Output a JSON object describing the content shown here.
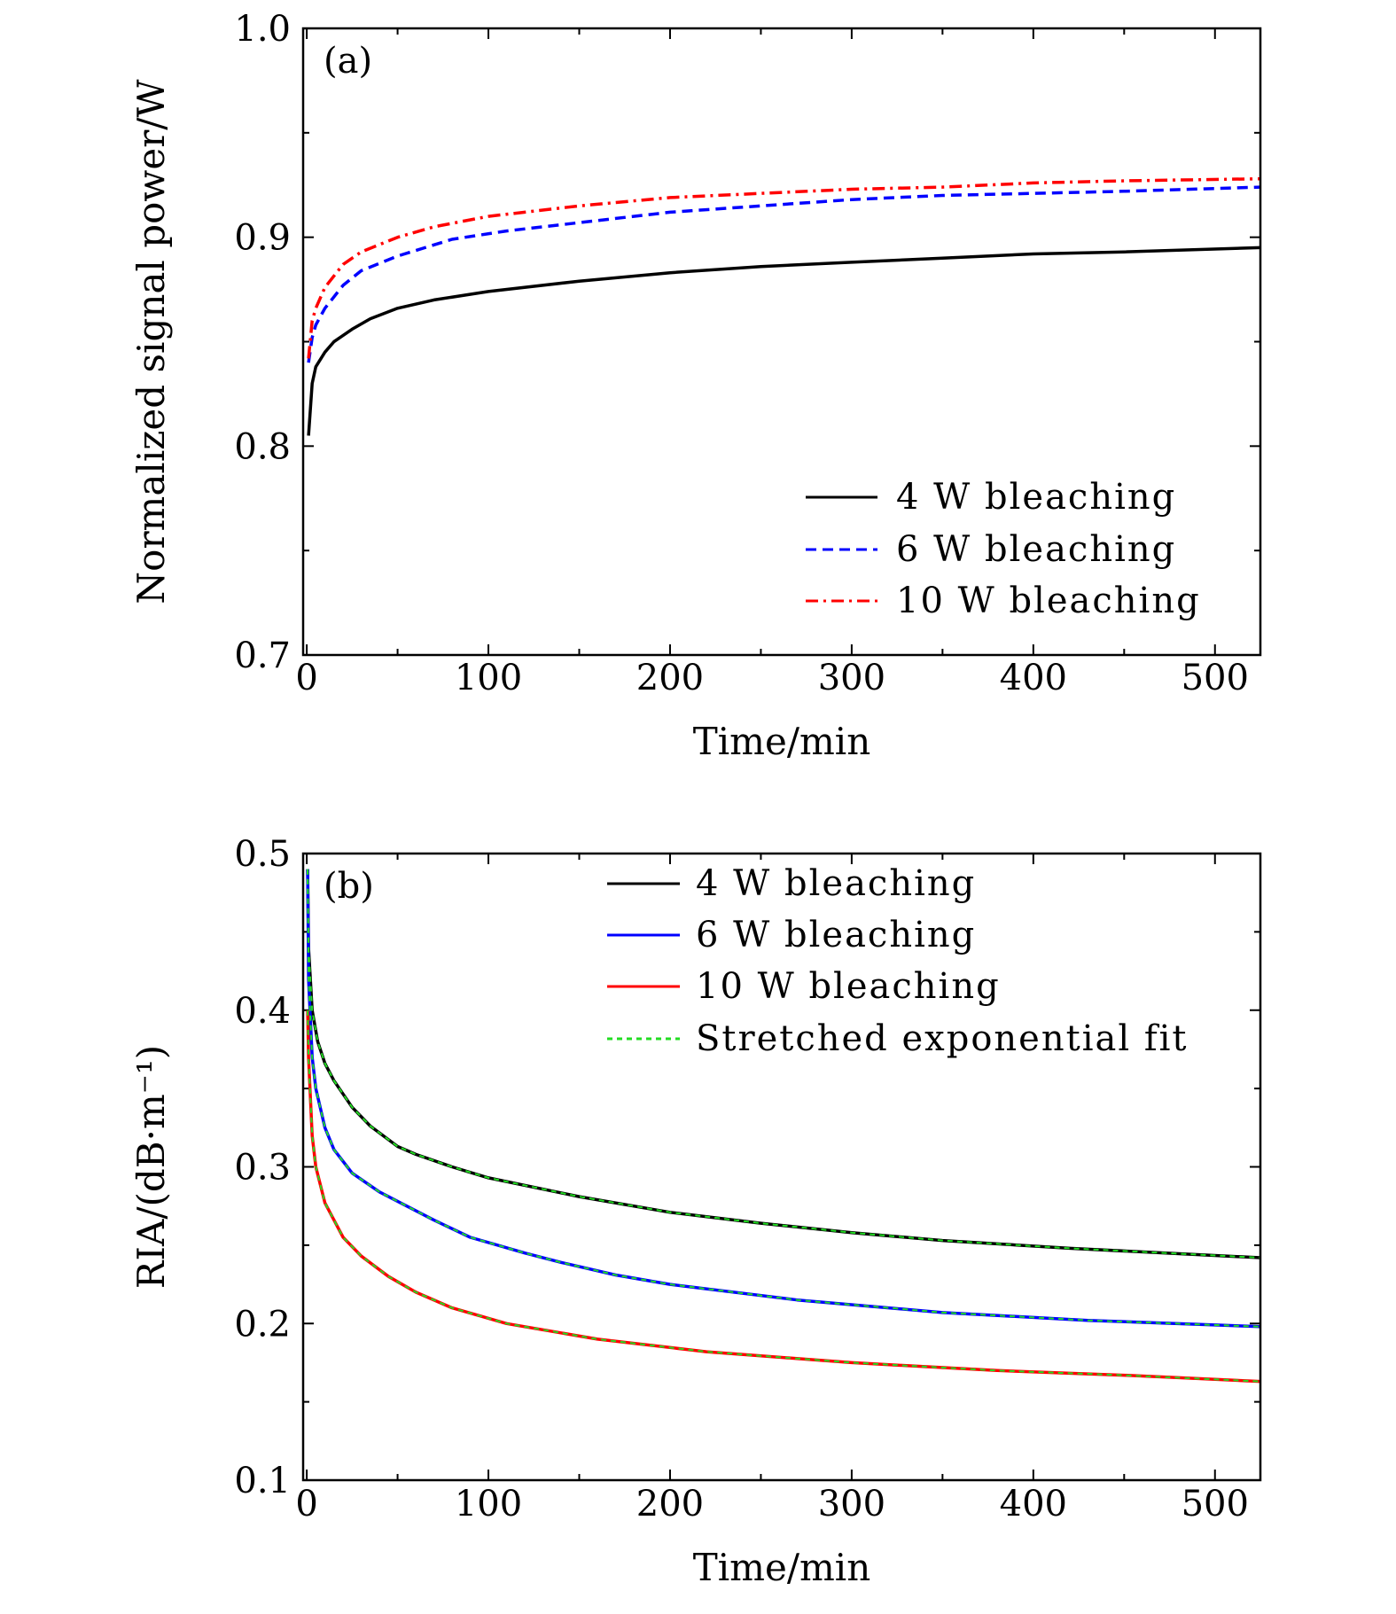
{
  "chart_data": [
    {
      "type": "line",
      "panel_label": "(a)",
      "xlabel": "Time/min",
      "ylabel": "Normalized signal power/W",
      "xlim": [
        -2,
        525
      ],
      "ylim": [
        0.7,
        1.0
      ],
      "xticks": [
        "0",
        "100",
        "200",
        "300",
        "400",
        "500"
      ],
      "yticks": [
        "0.7",
        "0.8",
        "0.9",
        "1.0"
      ],
      "grid": false,
      "legend_position": "bottom-right",
      "series": [
        {
          "name": "4 W bleaching",
          "color": "#000000",
          "style": "solid",
          "x": [
            1,
            3,
            5,
            10,
            15,
            25,
            35,
            50,
            70,
            100,
            150,
            200,
            250,
            300,
            350,
            400,
            450,
            525
          ],
          "y": [
            0.805,
            0.83,
            0.838,
            0.845,
            0.85,
            0.856,
            0.861,
            0.866,
            0.87,
            0.874,
            0.879,
            0.883,
            0.886,
            0.888,
            0.89,
            0.892,
            0.893,
            0.895
          ]
        },
        {
          "name": "6 W bleaching",
          "color": "#0000ff",
          "style": "dashed",
          "x": [
            1,
            3,
            5,
            10,
            20,
            30,
            50,
            80,
            110,
            150,
            200,
            250,
            300,
            350,
            400,
            450,
            525
          ],
          "y": [
            0.84,
            0.852,
            0.858,
            0.866,
            0.877,
            0.884,
            0.891,
            0.899,
            0.903,
            0.907,
            0.912,
            0.915,
            0.918,
            0.92,
            0.921,
            0.922,
            0.924
          ]
        },
        {
          "name": "10 W bleaching",
          "color": "#ff0000",
          "style": "dashdot",
          "x": [
            1,
            3,
            5,
            10,
            20,
            30,
            50,
            70,
            100,
            150,
            200,
            250,
            300,
            350,
            400,
            450,
            525
          ],
          "y": [
            0.842,
            0.86,
            0.866,
            0.876,
            0.887,
            0.893,
            0.9,
            0.905,
            0.91,
            0.915,
            0.919,
            0.921,
            0.923,
            0.924,
            0.926,
            0.927,
            0.928
          ]
        }
      ]
    },
    {
      "type": "line",
      "panel_label": "(b)",
      "xlabel": "Time/min",
      "ylabel": "RIA/(dB·m⁻¹)",
      "xlim": [
        -2,
        525
      ],
      "ylim": [
        0.1,
        0.5
      ],
      "xticks": [
        "0",
        "100",
        "200",
        "300",
        "400",
        "500"
      ],
      "yticks": [
        "0.1",
        "0.2",
        "0.3",
        "0.4",
        "0.5"
      ],
      "grid": false,
      "legend_position": "top-right",
      "series": [
        {
          "name": "4 W bleaching",
          "color": "#000000",
          "style": "solid",
          "x": [
            0.5,
            1,
            3,
            6,
            10,
            15,
            25,
            35,
            50,
            60,
            80,
            100,
            150,
            200,
            250,
            300,
            350,
            420,
            525
          ],
          "y": [
            0.49,
            0.44,
            0.4,
            0.38,
            0.366,
            0.355,
            0.338,
            0.326,
            0.313,
            0.308,
            0.3,
            0.293,
            0.281,
            0.271,
            0.264,
            0.258,
            0.253,
            0.248,
            0.242
          ]
        },
        {
          "name": "6 W bleaching",
          "color": "#0000ff",
          "style": "solid",
          "x": [
            0.5,
            1,
            3,
            5,
            10,
            15,
            25,
            40,
            55,
            70,
            90,
            120,
            140,
            170,
            200,
            270,
            350,
            430,
            525
          ],
          "y": [
            0.49,
            0.42,
            0.37,
            0.35,
            0.325,
            0.311,
            0.296,
            0.284,
            0.275,
            0.266,
            0.255,
            0.245,
            0.239,
            0.231,
            0.225,
            0.215,
            0.207,
            0.202,
            0.198
          ]
        },
        {
          "name": "10 W bleaching",
          "color": "#ff0000",
          "style": "solid",
          "x": [
            0.5,
            1,
            3,
            5,
            10,
            20,
            30,
            45,
            60,
            80,
            110,
            160,
            220,
            300,
            380,
            450,
            525
          ],
          "y": [
            0.4,
            0.37,
            0.32,
            0.3,
            0.277,
            0.255,
            0.243,
            0.23,
            0.22,
            0.21,
            0.2,
            0.19,
            0.182,
            0.175,
            0.17,
            0.167,
            0.163
          ]
        },
        {
          "name": "Stretched exponential fit",
          "color": "#22dd22",
          "style": "dotted",
          "fits": [
            "4 W bleaching",
            "6 W bleaching",
            "10 W bleaching"
          ]
        }
      ]
    }
  ]
}
